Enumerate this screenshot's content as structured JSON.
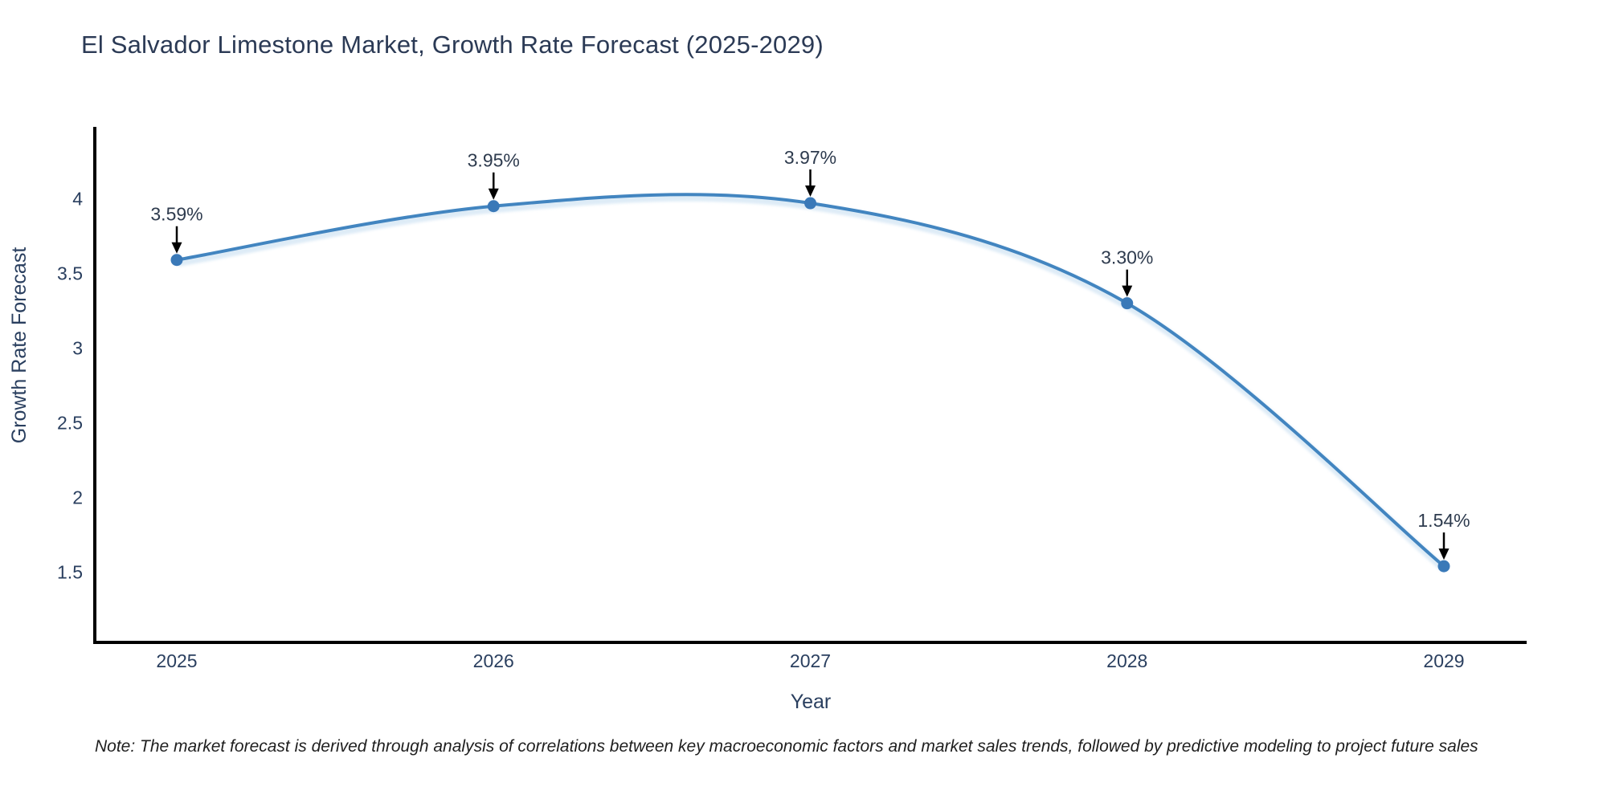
{
  "chart_data": {
    "type": "line",
    "title": "El Salvador Limestone Market, Growth Rate Forecast (2025-2029)",
    "x": [
      "2025",
      "2026",
      "2027",
      "2028",
      "2029"
    ],
    "series": [
      {
        "name": "Growth Rate Forecast",
        "values": [
          3.59,
          3.95,
          3.97,
          3.3,
          1.54
        ]
      }
    ],
    "point_labels": [
      "3.59%",
      "3.95%",
      "3.97%",
      "3.30%",
      "1.54%"
    ],
    "xlabel": "Year",
    "ylabel": "Growth Rate Forecast",
    "yticks": [
      1.5,
      2,
      2.5,
      3,
      3.5,
      4
    ],
    "ylim": [
      1.03,
      4.47
    ],
    "grid": false,
    "legend": "none",
    "line_shape": "spline",
    "colors": {
      "line": "#4285c0",
      "marker": "#3a79b8",
      "line_halo": "#c3dcf0",
      "axis": "#000000",
      "tick_text": "#2a3f5f",
      "axis_title_text": "#2a3f5f",
      "annotation_text": "#2e3b4e",
      "arrow": "#000000",
      "title_text": "#2b3a55"
    }
  },
  "note": {
    "text": "Note: The market forecast is derived through analysis of correlations between key macroeconomic factors and market sales trends, followed by predictive modeling to project future sales"
  }
}
